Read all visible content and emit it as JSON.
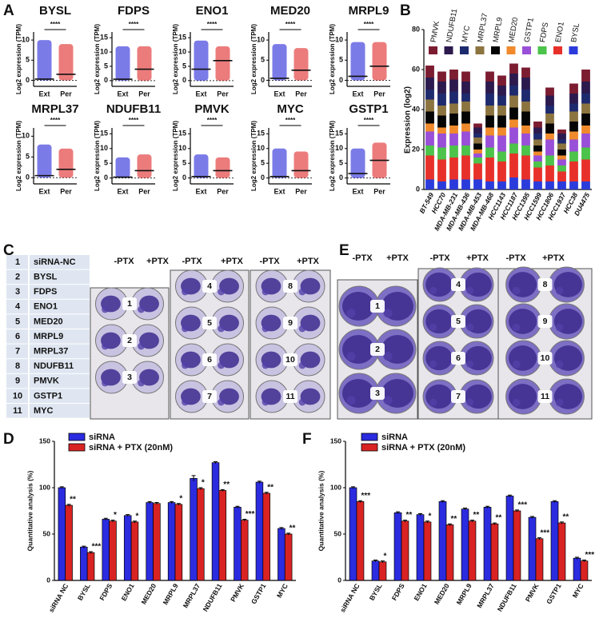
{
  "panel_labels": [
    "A",
    "B",
    "C",
    "D",
    "E",
    "F"
  ],
  "chart_data": [
    {
      "type": "dot",
      "title": "BYSL",
      "ylabel": "Log2 expression (TPM)",
      "categories": [
        "Ext",
        "Per"
      ],
      "colors": [
        "#2323d8",
        "#e02525"
      ],
      "means": [
        0.3,
        1.5
      ],
      "mins": [
        0,
        0
      ],
      "maxs": [
        10,
        9
      ],
      "significance": "****",
      "ylim": [
        -1.5,
        12
      ],
      "yticks": [
        0,
        5,
        10
      ]
    },
    {
      "type": "dot",
      "title": "FDPS",
      "ylabel": "Log2 expression (TPM)",
      "categories": [
        "Ext",
        "Per"
      ],
      "colors": [
        "#2323d8",
        "#e02525"
      ],
      "means": [
        0.5,
        4
      ],
      "mins": [
        0,
        0
      ],
      "maxs": [
        12,
        12
      ],
      "significance": "****",
      "ylim": [
        -2,
        17
      ],
      "yticks": [
        0,
        5,
        10,
        15
      ]
    },
    {
      "type": "dot",
      "title": "ENO1",
      "ylabel": "Log2 expression (TPM)",
      "categories": [
        "Ext",
        "Per"
      ],
      "colors": [
        "#2323d8",
        "#e02525"
      ],
      "means": [
        4,
        7
      ],
      "mins": [
        0,
        0
      ],
      "maxs": [
        14,
        12
      ],
      "significance": "****",
      "ylim": [
        -2,
        17
      ],
      "yticks": [
        0,
        5,
        10,
        15
      ]
    },
    {
      "type": "dot",
      "title": "MED20",
      "ylabel": "Log2 expression (TPM)",
      "categories": [
        "Ext",
        "Per"
      ],
      "colors": [
        "#2323d8",
        "#e02525"
      ],
      "means": [
        0.5,
        2.5
      ],
      "mins": [
        0,
        0
      ],
      "maxs": [
        9,
        8
      ],
      "significance": "****",
      "ylim": [
        -1.5,
        12
      ],
      "yticks": [
        0,
        5,
        10
      ]
    },
    {
      "type": "dot",
      "title": "MRPL9",
      "ylabel": "Log2 expression (TPM)",
      "categories": [
        "Ext",
        "Per"
      ],
      "colors": [
        "#2323d8",
        "#e02525"
      ],
      "means": [
        1,
        3.5
      ],
      "mins": [
        0,
        0
      ],
      "maxs": [
        9.5,
        9.5
      ],
      "significance": "****",
      "ylim": [
        -1.5,
        12
      ],
      "yticks": [
        0,
        5,
        10
      ]
    },
    {
      "type": "dot",
      "title": "MRPL37",
      "ylabel": "Log2 expression (TPM)",
      "categories": [
        "Ext",
        "Per"
      ],
      "colors": [
        "#2323d8",
        "#e02525"
      ],
      "means": [
        0.5,
        2
      ],
      "mins": [
        0,
        0
      ],
      "maxs": [
        8,
        7
      ],
      "significance": "****",
      "ylim": [
        -1.5,
        12
      ],
      "yticks": [
        0,
        5,
        10
      ]
    },
    {
      "type": "dot",
      "title": "NDUFB11",
      "ylabel": "Log2 expression (TPM)",
      "categories": [
        "Ext",
        "Per"
      ],
      "colors": [
        "#2323d8",
        "#e02525"
      ],
      "means": [
        0.3,
        2.5
      ],
      "mins": [
        0,
        0
      ],
      "maxs": [
        7,
        8
      ],
      "significance": "****",
      "ylim": [
        -2,
        17
      ],
      "yticks": [
        0,
        5,
        10,
        15
      ]
    },
    {
      "type": "dot",
      "title": "PMVK",
      "ylabel": "Log2 expression (TPM)",
      "categories": [
        "Ext",
        "Per"
      ],
      "colors": [
        "#2323d8",
        "#e02525"
      ],
      "means": [
        0.5,
        2.5
      ],
      "mins": [
        0,
        0
      ],
      "maxs": [
        8,
        7
      ],
      "significance": "****",
      "ylim": [
        -2,
        17
      ],
      "yticks": [
        0,
        5,
        10,
        15
      ]
    },
    {
      "type": "dot",
      "title": "MYC",
      "ylabel": "Log2 expression (TPM)",
      "categories": [
        "Ext",
        "Per"
      ],
      "colors": [
        "#2323d8",
        "#e02525"
      ],
      "means": [
        0.5,
        2.5
      ],
      "mins": [
        0,
        0
      ],
      "maxs": [
        10,
        9
      ],
      "significance": "****",
      "ylim": [
        -2,
        17
      ],
      "yticks": [
        0,
        5,
        10,
        15
      ]
    },
    {
      "type": "dot",
      "title": "GSTP1",
      "ylabel": "Log2 expression (TPM)",
      "categories": [
        "Ext",
        "Per"
      ],
      "colors": [
        "#2323d8",
        "#e02525"
      ],
      "means": [
        1.5,
        6
      ],
      "mins": [
        0,
        0
      ],
      "maxs": [
        10,
        12
      ],
      "significance": "****",
      "ylim": [
        -2,
        17
      ],
      "yticks": [
        0,
        5,
        10,
        15
      ]
    },
    {
      "type": "stacked_bar",
      "ylabel": "Expression (log2)",
      "categories": [
        "BT-549",
        "HCC70",
        "MDA-MB-231",
        "MDA-MB-436",
        "MDA-MB-453",
        "MDA-MB-468",
        "HCC1143",
        "HCC1187",
        "HCC1395",
        "HCC1599",
        "HCC1806",
        "HCC1937",
        "HCC38",
        "DU4475"
      ],
      "series": [
        {
          "name": "BYSL",
          "color": "#2b3bdb",
          "values": [
            5,
            4,
            5,
            5,
            5,
            4,
            4,
            6,
            5,
            4,
            4,
            4,
            4,
            4
          ]
        },
        {
          "name": "ENO1",
          "color": "#e8302a",
          "values": [
            12,
            11,
            11,
            12,
            8,
            12,
            10,
            12,
            12,
            7,
            8,
            5,
            10,
            11
          ]
        },
        {
          "name": "FDPS",
          "color": "#4cc34a",
          "values": [
            5,
            6,
            6,
            5,
            3,
            5,
            5,
            5,
            5,
            3,
            5,
            3,
            5,
            6
          ]
        },
        {
          "name": "GSTP1",
          "color": "#9a4fd8",
          "values": [
            7,
            7,
            6,
            7,
            2,
            6,
            8,
            8,
            6,
            3,
            8,
            3,
            6,
            7
          ]
        },
        {
          "name": "MED20",
          "color": "#f08a2c",
          "values": [
            4,
            3,
            4,
            4,
            2,
            4,
            4,
            4,
            4,
            2,
            3,
            2,
            4,
            4
          ]
        },
        {
          "name": "MRPL9",
          "color": "#050505",
          "values": [
            6,
            6,
            6,
            6,
            3,
            6,
            6,
            6,
            7,
            3,
            5,
            3,
            5,
            6
          ]
        },
        {
          "name": "MRPL37",
          "color": "#8c7440",
          "values": [
            6,
            5,
            5,
            5,
            3,
            5,
            5,
            6,
            5,
            3,
            5,
            3,
            5,
            5
          ]
        },
        {
          "name": "MYC",
          "color": "#1e2a6e",
          "values": [
            5,
            6,
            6,
            4,
            2,
            6,
            5,
            5,
            6,
            3,
            4,
            2,
            4,
            5
          ]
        },
        {
          "name": "NDUFB11",
          "color": "#2c1a4e",
          "values": [
            6,
            6,
            6,
            6,
            3,
            6,
            5,
            6,
            6,
            3,
            5,
            3,
            5,
            6
          ]
        },
        {
          "name": "PMVK",
          "color": "#7c1c30",
          "values": [
            6,
            5,
            5,
            5,
            2,
            5,
            5,
            5,
            5,
            3,
            4,
            2,
            5,
            6
          ]
        }
      ],
      "ylim": [
        0,
        80
      ],
      "yticks": [
        0,
        20,
        40,
        60,
        80
      ]
    },
    {
      "type": "grouped_bar",
      "ylabel": "Quantitative analysis (%)",
      "categories": [
        "siRNA NC",
        "BYSL",
        "FDPS",
        "ENO1",
        "MED20",
        "MRPL9",
        "MRPL37",
        "NDUFB11",
        "PMVK",
        "GSTP1",
        "MYC"
      ],
      "series": [
        {
          "name": "siRNA",
          "color": "#2b2be0",
          "values": [
            100,
            36,
            66,
            70,
            84,
            84,
            110,
            127,
            79,
            106,
            56
          ],
          "errors": [
            1,
            1,
            1,
            1,
            1,
            1,
            3,
            1,
            1,
            1,
            1
          ]
        },
        {
          "name": "siRNA + PTX (20nM)",
          "color": "#d92323",
          "values": [
            81,
            30,
            64,
            63,
            83,
            82,
            99,
            97,
            65,
            94,
            50
          ],
          "errors": [
            1,
            1,
            1,
            1,
            1,
            1,
            1,
            1,
            1,
            1,
            1
          ]
        }
      ],
      "significance": [
        "**",
        "***",
        "*",
        "*",
        null,
        "*",
        "*",
        "**",
        "***",
        "**",
        "**"
      ],
      "ylim": [
        0,
        150
      ],
      "yticks": [
        0,
        50,
        100,
        150
      ]
    },
    {
      "type": "grouped_bar",
      "ylabel": "Quantitative analysis (%)",
      "categories": [
        "siRNA NC",
        "BYSL",
        "FDPS",
        "ENO1",
        "MED20",
        "MRPL9",
        "MRPL37",
        "NDUFB11",
        "PMVK",
        "GSTP1",
        "MYC"
      ],
      "series": [
        {
          "name": "siRNA",
          "color": "#2b2be0",
          "values": [
            100,
            21,
            73,
            71,
            85,
            77,
            79,
            91,
            68,
            85,
            24
          ],
          "errors": [
            1,
            1,
            1,
            1,
            1,
            1,
            1,
            1,
            1,
            1,
            1
          ]
        },
        {
          "name": "siRNA + PTX (20nM)",
          "color": "#d92323",
          "values": [
            85,
            20,
            64,
            63,
            60,
            64,
            61,
            75,
            45,
            62,
            21
          ],
          "errors": [
            1,
            1,
            1,
            1,
            1,
            1,
            1,
            1,
            1,
            1,
            1
          ]
        }
      ],
      "significance": [
        "***",
        "*",
        "**",
        "*",
        "**",
        "**",
        "**",
        "***",
        "***",
        "**",
        "***"
      ],
      "ylim": [
        0,
        150
      ],
      "yticks": [
        0,
        50,
        100,
        150
      ]
    }
  ],
  "legend_table": {
    "rows": [
      [
        1,
        "siRNA-NC"
      ],
      [
        2,
        "BYSL"
      ],
      [
        3,
        "FDPS"
      ],
      [
        4,
        "ENO1"
      ],
      [
        5,
        "MED20"
      ],
      [
        6,
        "MRPL9"
      ],
      [
        7,
        "MRPL37"
      ],
      [
        8,
        "NDUFB11"
      ],
      [
        9,
        "PMVK"
      ],
      [
        10,
        "GSTP1"
      ],
      [
        11,
        "MYC"
      ]
    ]
  },
  "plates": [
    {
      "headers": [
        "-PTX",
        "+PTX",
        "-PTX",
        "+PTX",
        "-PTX",
        "+PTX"
      ],
      "wells": [
        [
          1,
          2,
          3
        ],
        [
          4,
          5,
          6,
          7
        ],
        [
          8,
          9,
          10,
          11
        ]
      ]
    },
    {
      "headers": [
        "-PTX",
        "+PTX",
        "-PTX",
        "+PTX",
        "-PTX",
        "+PTX"
      ],
      "wells": [
        [
          1,
          2,
          3
        ],
        [
          4,
          5,
          6,
          7
        ],
        [
          8,
          9,
          10,
          11
        ]
      ]
    }
  ]
}
